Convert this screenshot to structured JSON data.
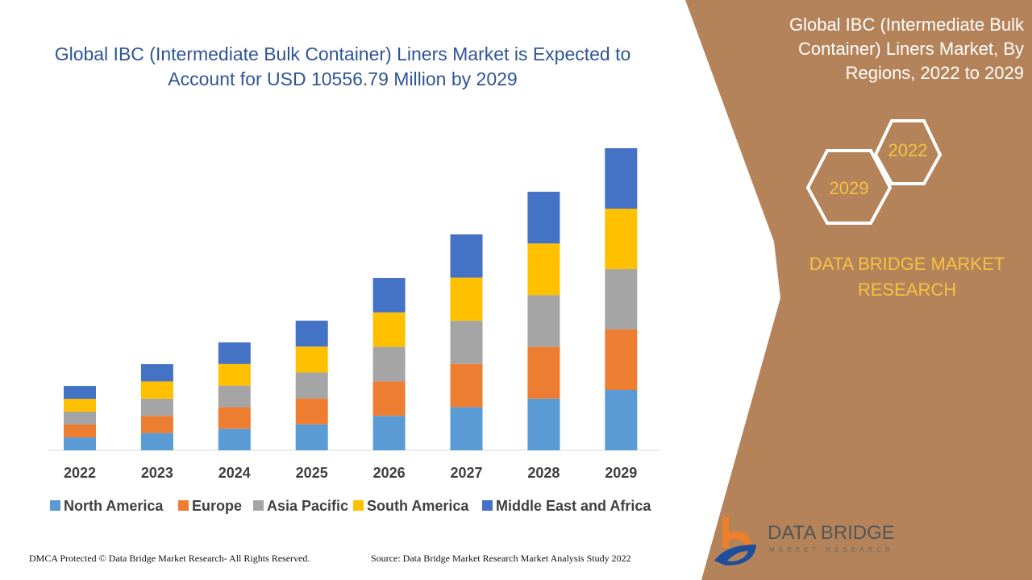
{
  "title": "Global IBC (Intermediate Bulk Container) Liners Market is Expected to Account for USD 10556.79 Million by 2029",
  "side_panel": {
    "title": "Global IBC (Intermediate Bulk Container) Liners Market, By Regions, 2022 to 2029",
    "hex_labels": [
      "2022",
      "2029"
    ],
    "brand": "DATA BRIDGE MARKET RESEARCH"
  },
  "logo": {
    "name": "DATA BRIDGE",
    "sub": "MARKET RESEARCH"
  },
  "footer": {
    "left": "DMCA Protected © Data Bridge Market Research- All Rights Reserved.",
    "right": "Source: Data Bridge Market Research Market Analysis Study 2022"
  },
  "colors": {
    "panel": "#B5835A",
    "title": "#2F5597",
    "accent": "#F5C242"
  },
  "chart_data": {
    "type": "bar",
    "stacked": true,
    "categories": [
      "2022",
      "2023",
      "2024",
      "2025",
      "2026",
      "2027",
      "2028",
      "2029"
    ],
    "series": [
      {
        "name": "North America",
        "color": "#5B9BD5",
        "values": [
          450,
          602,
          754,
          906,
          1205,
          1509,
          1807,
          2111
        ]
      },
      {
        "name": "Europe",
        "color": "#ED7D31",
        "values": [
          450,
          602,
          754,
          906,
          1205,
          1509,
          1807,
          2111
        ]
      },
      {
        "name": "Asia Pacific",
        "color": "#A5A5A5",
        "values": [
          450,
          602,
          754,
          906,
          1205,
          1509,
          1807,
          2111
        ]
      },
      {
        "name": "South America",
        "color": "#FFC000",
        "values": [
          450,
          602,
          754,
          906,
          1205,
          1509,
          1807,
          2112
        ]
      },
      {
        "name": "Middle East and Africa",
        "color": "#4472C4",
        "values": [
          450,
          602,
          754,
          906,
          1205,
          1509,
          1807,
          2112
        ]
      }
    ],
    "ylim": [
      0,
      10557
    ],
    "grid": false,
    "legend": "bottom"
  }
}
